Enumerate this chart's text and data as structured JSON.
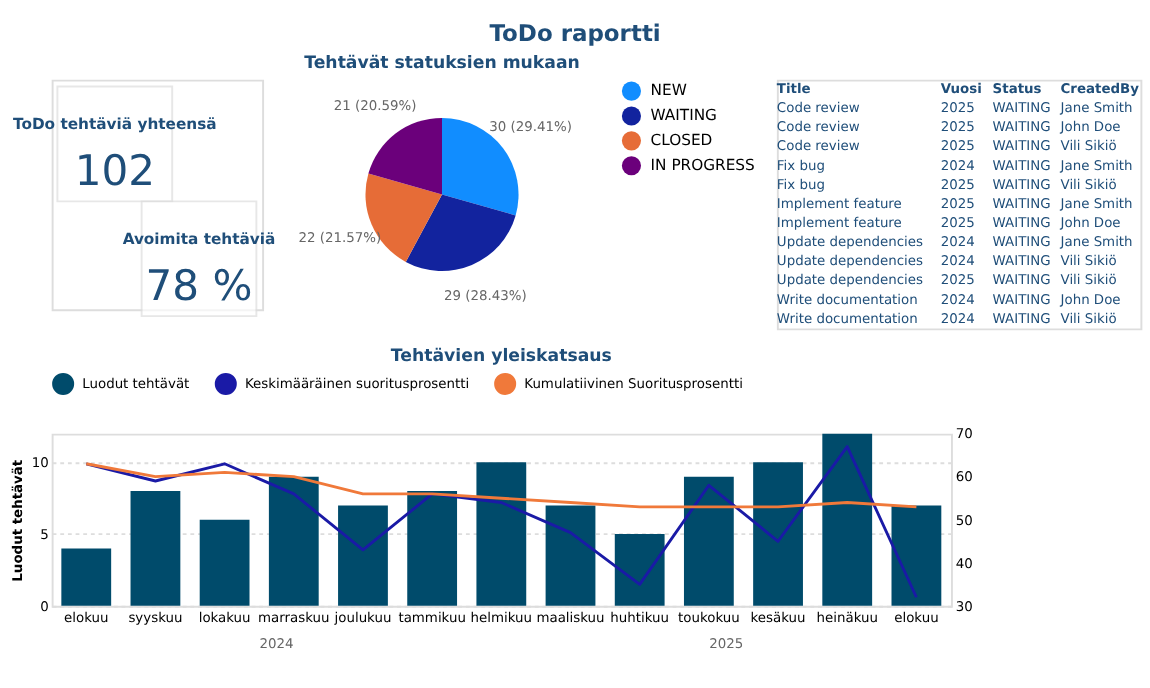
{
  "chart_data": [
    {
      "type": "other",
      "title": "ToDo raportti",
      "annotations": [
        "ToDo tehtäviä yhteensä",
        "102",
        "Avoimita tehtäviä",
        "78 %"
      ]
    },
    {
      "type": "pie",
      "title": "Tehtävät statuksien mukaan",
      "categories": [
        "NEW",
        "WAITING",
        "CLOSED",
        "IN PROGRESS"
      ],
      "values": [
        30,
        29,
        22,
        21
      ],
      "colors": [
        "#118dff",
        "#12239e",
        "#e66c37",
        "#6b007b"
      ],
      "value_labels": [
        "30 (29.41%)",
        "29 (28.43%)",
        "22 (21.57%)",
        "21 (20.59%)"
      ],
      "legend": "right"
    },
    {
      "type": "other",
      "categories": [
        "Title",
        "Vuosi",
        "Status",
        "CreatedBy"
      ],
      "cell_labels": [
        [
          "Code review",
          "2025",
          "WAITING",
          "Jane Smith"
        ],
        [
          "Code review",
          "2025",
          "WAITING",
          "John Doe"
        ],
        [
          "Code review",
          "2025",
          "WAITING",
          "Vili Sikiö"
        ],
        [
          "Fix bug",
          "2024",
          "WAITING",
          "Jane Smith"
        ],
        [
          "Fix bug",
          "2025",
          "WAITING",
          "Vili Sikiö"
        ],
        [
          "Implement feature",
          "2025",
          "WAITING",
          "Jane Smith"
        ],
        [
          "Implement feature",
          "2025",
          "WAITING",
          "John Doe"
        ],
        [
          "Update dependencies",
          "2024",
          "WAITING",
          "Jane Smith"
        ],
        [
          "Update dependencies",
          "2024",
          "WAITING",
          "Vili Sikiö"
        ],
        [
          "Update dependencies",
          "2025",
          "WAITING",
          "Vili Sikiö"
        ],
        [
          "Write documentation",
          "2024",
          "WAITING",
          "John Doe"
        ],
        [
          "Write documentation",
          "2024",
          "WAITING",
          "Vili Sikiö"
        ]
      ]
    },
    {
      "type": "bar",
      "title": "Tehtävien yleiskatsaus",
      "ylabel": "Luodut tehtävät",
      "categories": [
        "elokuu",
        "syyskuu",
        "lokakuu",
        "marraskuu",
        "joulukuu",
        "tammikuu",
        "helmikuu",
        "maaliskuu",
        "huhtikuu",
        "toukokuu",
        "kesäkuu",
        "heinäkuu",
        "elokuu"
      ],
      "series": [
        {
          "name": "Luodut tehtävät",
          "type": "bar",
          "color": "#004b6b",
          "values": [
            4,
            8,
            6,
            9,
            7,
            8,
            10,
            7,
            5,
            9,
            10,
            12,
            7
          ]
        },
        {
          "name": "Keskimääräinen suoritusprosentti",
          "type": "line",
          "axis": "y2",
          "color": "#1a1aa6",
          "values": [
            63,
            59,
            63,
            56,
            43,
            56,
            54,
            47,
            35,
            58,
            45,
            67,
            32
          ]
        },
        {
          "name": "Kumulatiivinen Suoritusprosentti",
          "type": "line",
          "axis": "y2",
          "color": "#f0793a",
          "values": [
            63,
            60,
            61,
            60,
            56,
            56,
            55,
            54,
            53,
            53,
            53,
            54,
            53
          ]
        }
      ],
      "ylim": [
        0,
        12
      ],
      "yticks": [
        0,
        5,
        10
      ],
      "y2lim": [
        30,
        70
      ],
      "y2ticks": [
        30,
        40,
        50,
        60,
        70
      ],
      "grid": "y",
      "legend": "top left",
      "annotations": [
        "2024",
        "2025"
      ]
    }
  ]
}
